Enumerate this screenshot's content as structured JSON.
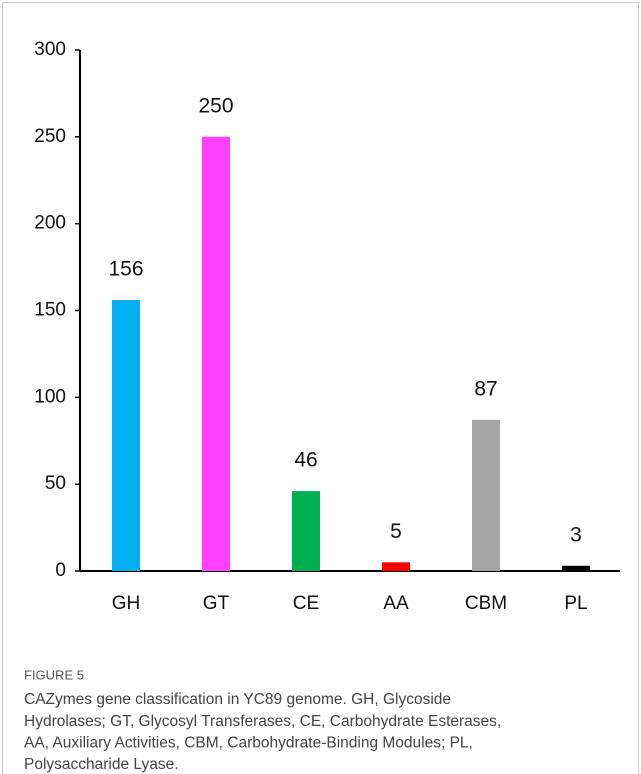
{
  "chart_data": {
    "type": "bar",
    "categories": [
      "GH",
      "GT",
      "CE",
      "AA",
      "CBM",
      "PL"
    ],
    "values": [
      156,
      250,
      46,
      5,
      87,
      3
    ],
    "colors": [
      "#00b0f0",
      "#ff40ff",
      "#00b050",
      "#ff0000",
      "#a6a6a6",
      "#000000"
    ],
    "ylim": [
      0,
      300
    ],
    "yticks": [
      0,
      50,
      100,
      150,
      200,
      250,
      300
    ],
    "grid": false
  },
  "caption": {
    "label": "FIGURE 5",
    "lines": [
      "CAZymes gene classification in YC89 genome. GH, Glycoside",
      "Hydrolases; GT, Glycosyl Transferases, CE, Carbohydrate Esterases,",
      "AA, Auxiliary Activities, CBM, Carbohydrate-Binding Modules; PL,",
      "Polysaccharide Lyase."
    ]
  }
}
